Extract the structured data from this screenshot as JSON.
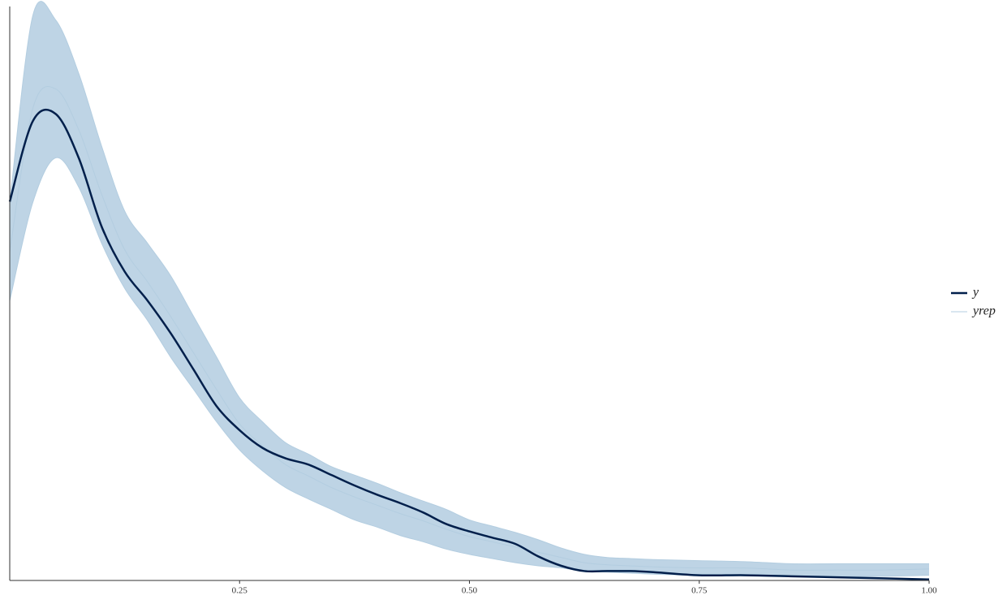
{
  "chart_data": {
    "type": "density-overlay",
    "x": [
      0,
      0.025,
      0.05,
      0.075,
      0.1,
      0.125,
      0.15,
      0.175,
      0.2,
      0.225,
      0.25,
      0.275,
      0.3,
      0.325,
      0.35,
      0.375,
      0.4,
      0.425,
      0.45,
      0.475,
      0.5,
      0.525,
      0.55,
      0.575,
      0.6,
      0.625,
      0.65,
      0.675,
      0.7,
      0.75,
      0.8,
      0.85,
      0.9,
      0.95,
      1.0
    ],
    "series": [
      {
        "name": "y",
        "color": "#011f4b",
        "values": [
          3.63,
          4.4,
          4.47,
          4.05,
          3.39,
          2.96,
          2.68,
          2.37,
          2.02,
          1.67,
          1.44,
          1.27,
          1.17,
          1.11,
          1.01,
          0.91,
          0.82,
          0.74,
          0.65,
          0.54,
          0.47,
          0.41,
          0.35,
          0.23,
          0.14,
          0.09,
          0.09,
          0.09,
          0.08,
          0.05,
          0.05,
          0.04,
          0.03,
          0.02,
          0.01
        ]
      },
      {
        "name": "yrep",
        "color": "#b3cde0",
        "values": [
          [
            3.62,
            5.41,
            5.37,
            4.86,
            4.16,
            3.54,
            3.23,
            2.92,
            2.53,
            2.14,
            1.75,
            1.52,
            1.32,
            1.21,
            1.09,
            1.01,
            0.93,
            0.84,
            0.76,
            0.68,
            0.58,
            0.52,
            0.46,
            0.39,
            0.31,
            0.25,
            0.22,
            0.21,
            0.2,
            0.19,
            0.18,
            0.16,
            0.16,
            0.16,
            0.16
          ],
          [
            2.68,
            3.62,
            4.05,
            3.77,
            3.23,
            2.8,
            2.49,
            2.14,
            1.83,
            1.52,
            1.25,
            1.05,
            0.89,
            0.78,
            0.68,
            0.58,
            0.51,
            0.43,
            0.37,
            0.3,
            0.25,
            0.21,
            0.17,
            0.14,
            0.12,
            0.09,
            0.08,
            0.07,
            0.06,
            0.05,
            0.05,
            0.04,
            0.04,
            0.04,
            0.05
          ],
          [
            3.15,
            4.52,
            4.71,
            4.32,
            3.7,
            3.17,
            2.86,
            2.53,
            2.18,
            1.83,
            1.5,
            1.29,
            1.11,
            1.0,
            0.89,
            0.8,
            0.72,
            0.64,
            0.57,
            0.49,
            0.42,
            0.37,
            0.32,
            0.27,
            0.22,
            0.17,
            0.15,
            0.14,
            0.13,
            0.12,
            0.12,
            0.1,
            0.1,
            0.1,
            0.11
          ]
        ]
      }
    ],
    "xlim": [
      0,
      1
    ],
    "xticks": [
      0.25,
      {
        "value": 0.5,
        "label": "0.50"
      },
      0.75,
      {
        "value": 1,
        "label": "1.00"
      }
    ],
    "ylim": [
      0,
      5.5
    ],
    "legend": "right"
  }
}
